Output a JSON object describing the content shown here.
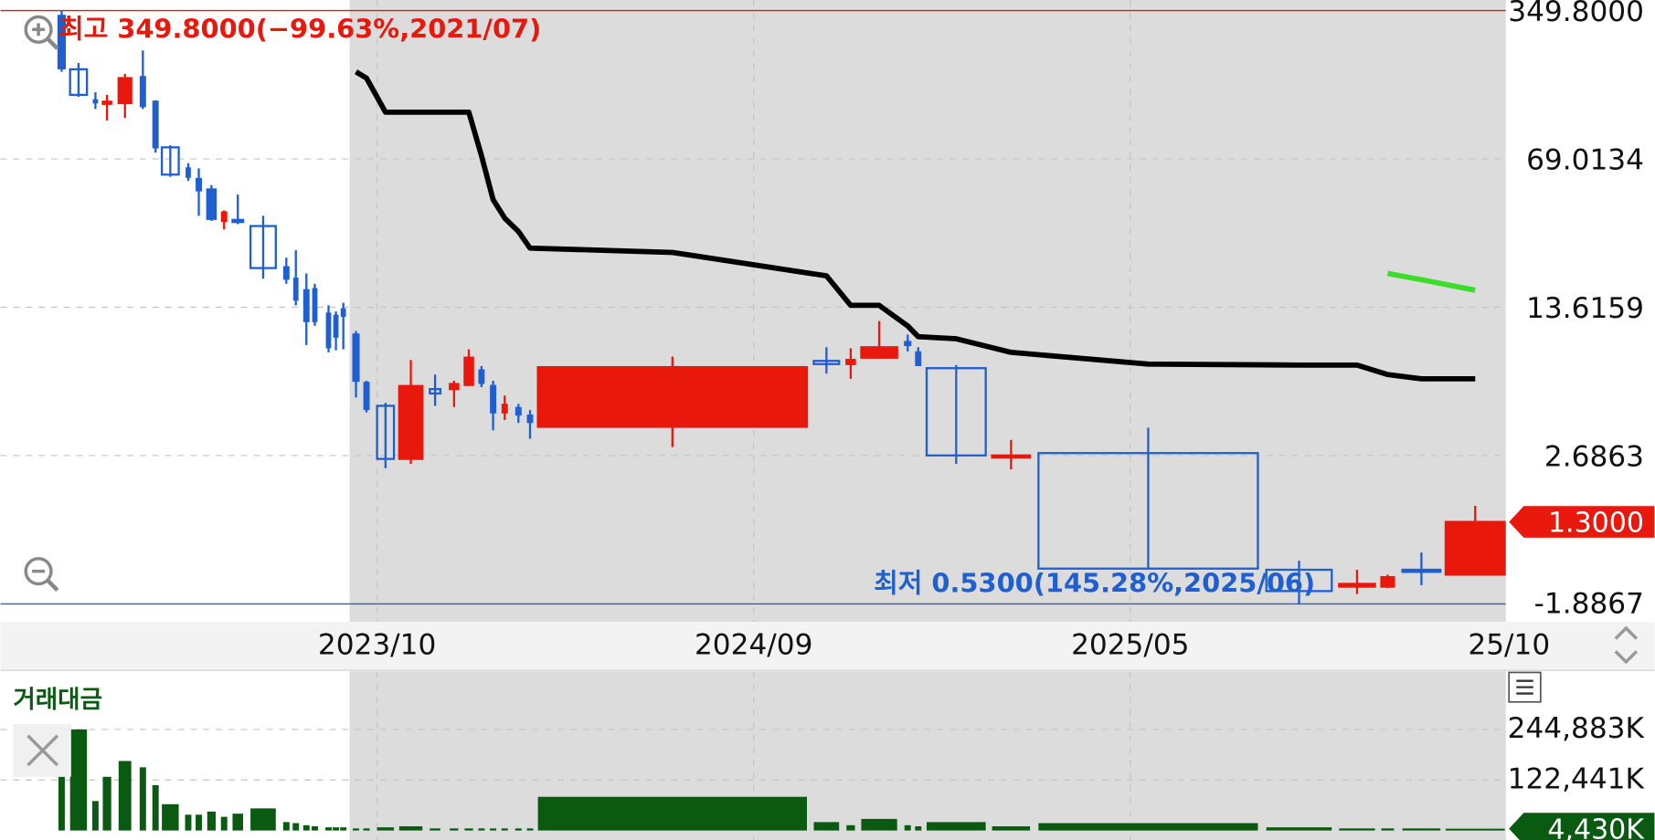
{
  "chart_data": {
    "type": "candlestick",
    "yscale": "log",
    "ylim": [
      0.53,
      349.8
    ],
    "yticks": [
      {
        "value": 349.8,
        "label": "349.8000"
      },
      69.0134,
      13.6159,
      2.6863
    ],
    "bottom_label": "-1.8867",
    "grid": true,
    "up_color": "#e8190c",
    "down_color": "#1f5fcf",
    "high": {
      "value": 349.8,
      "label": "최고 349.8000(−99.63%,2021/07)"
    },
    "low": {
      "value": 0.53,
      "label": "최저 0.5300(145.28%,2025/06)"
    },
    "last": {
      "value": 1.3,
      "label": "1.3000"
    },
    "x_labels": [
      "2023/10",
      "2024/09",
      "2025/05",
      "25/10"
    ],
    "candles": {
      "open": [
        330,
        184,
        131,
        129,
        127,
        169,
        129,
        78.3,
        62.2,
        55.4,
        49.4,
        35.0,
        35.4,
        33.1,
        21.1,
        18.6,
        16.4,
        16.6,
        12.7,
        12.4,
        13.3,
        10.1,
        5.95,
        4.63,
        2.59,
        5.56,
        5.56,
        5.82,
        6.82,
        5.75,
        4.31,
        4.52,
        4.16,
        3.68,
        7.57,
        7.31,
        7.84,
        9.31,
        8.31,
        6.99,
        2.69,
        2.76,
        0.77,
        0.64,
        0.64,
        0.77,
        0.73
      ],
      "high": [
        349.8,
        197,
        143,
        139,
        175,
        226,
        131,
        80.1,
        65.9,
        62.2,
        51.8,
        39.3,
        46.7,
        37.0,
        23.4,
        25.4,
        19.7,
        17.6,
        13.9,
        13.0,
        14.3,
        10.5,
        6.09,
        4.78,
        7.65,
        6.52,
        6.09,
        8.59,
        7.15,
        6.09,
        5.18,
        4.73,
        4.42,
        7.93,
        8.79,
        8.69,
        11.7,
        10.1,
        8.79,
        7.23,
        3.19,
        3.64,
        0.85,
        0.77,
        0.73,
        0.93,
        1.55
      ],
      "low": [
        179,
        136,
        119,
        105,
        108,
        119,
        73.9,
        56.7,
        54.2,
        37.0,
        35.0,
        31.9,
        33.8,
        18.6,
        17.6,
        13.9,
        9.0,
        11.1,
        8.31,
        8.5,
        8.59,
        5.07,
        4.31,
        2.34,
        2.45,
        4.63,
        4.57,
        5.75,
        5.68,
        3.54,
        3.97,
        3.84,
        3.23,
        2.95,
        6.59,
        6.22,
        7.84,
        8.4,
        7.15,
        2.45,
        2.31,
        0.78,
        0.53,
        0.59,
        0.63,
        0.65,
        0.73
      ],
      "close": [
        186,
        139,
        129,
        129,
        167,
        123,
        78.3,
        58.1,
        56.7,
        48.9,
        35.8,
        38.4,
        34.6,
        20.9,
        18.6,
        14.8,
        11.7,
        11.7,
        8.79,
        9.87,
        12.4,
        6.09,
        4.47,
        2.59,
        5.75,
        5.3,
        5.88,
        7.84,
        5.95,
        4.31,
        4.68,
        4.21,
        3.88,
        7.07,
        7.31,
        7.65,
        8.79,
        9.0,
        7.23,
        2.69,
        2.69,
        0.78,
        0.61,
        0.66,
        0.71,
        0.76,
        1.3
      ]
    },
    "overlays": [
      {
        "color": "#000000",
        "values": [
          null,
          null,
          null,
          null,
          null,
          null,
          null,
          null,
          null,
          null,
          null,
          null,
          null,
          null,
          null,
          null,
          null,
          null,
          null,
          null,
          null,
          179,
          167,
          115,
          115,
          115,
          115,
          115,
          71.4,
          44.2,
          36.1,
          31.2,
          26.0,
          24.8,
          19.2,
          13.9,
          13.9,
          11.1,
          9.87,
          9.64,
          8.31,
          7.31,
          7.23,
          7.23,
          6.52,
          6.22,
          6.22
        ]
      },
      {
        "color": "#3ddc2a",
        "values": [
          null,
          null,
          null,
          null,
          null,
          null,
          null,
          null,
          null,
          null,
          null,
          null,
          null,
          null,
          null,
          null,
          null,
          null,
          null,
          null,
          null,
          null,
          null,
          null,
          null,
          null,
          null,
          null,
          null,
          null,
          null,
          null,
          null,
          null,
          null,
          null,
          null,
          null,
          null,
          null,
          null,
          null,
          null,
          null,
          19.7,
          18.4,
          16.4
        ]
      }
    ],
    "volume": {
      "label": "거래대금",
      "color": "#0b5a12",
      "ylim": [
        0,
        360000
      ],
      "yticks": [
        {
          "value": 122441,
          "label": "122,441K"
        },
        {
          "value": 244883,
          "label": "244,883K"
        }
      ],
      "last": {
        "value": 4430,
        "label": "4,430K"
      },
      "values": [
        130100,
        244900,
        71400,
        130100,
        168400,
        153100,
        109800,
        63800,
        38300,
        38300,
        45900,
        33200,
        40800,
        53600,
        20400,
        17900,
        12800,
        10200,
        7700,
        7700,
        7700,
        5100,
        5100,
        7700,
        10200,
        5100,
        5100,
        5100,
        5100,
        5100,
        5100,
        5100,
        5100,
        81600,
        20400,
        12800,
        28100,
        12800,
        10200,
        20400,
        10200,
        17900,
        7700,
        5100,
        5100,
        5100,
        4430
      ]
    }
  }
}
